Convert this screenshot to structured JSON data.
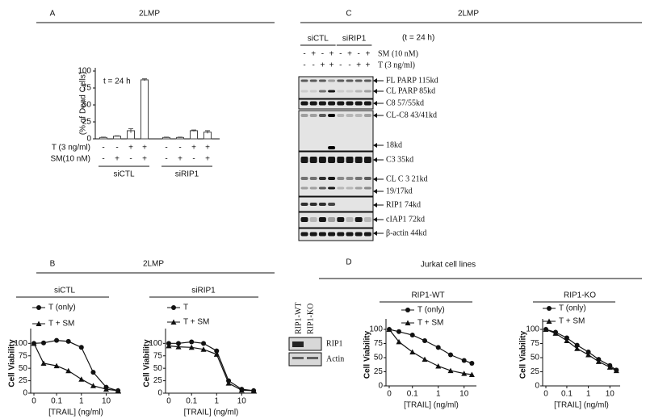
{
  "panels": [
    {
      "label": "A",
      "title": "2LMP"
    },
    {
      "label": "B",
      "title": "2LMP"
    },
    {
      "label": "C",
      "title": "2LMP"
    },
    {
      "label": "D",
      "title": "Jurkat cell lines"
    }
  ],
  "chart_data": [
    {
      "type": "bar",
      "annotation": "t = 24 h",
      "ylabel": "(% of Dead Cells)",
      "categories": [
        null,
        null,
        null,
        null,
        null,
        null,
        null,
        null
      ],
      "values": [
        2,
        4,
        12,
        87,
        2,
        2,
        12,
        10
      ],
      "errors": [
        0.5,
        0.5,
        3,
        1.5,
        0.5,
        0.5,
        1,
        2
      ],
      "color": "#ffffff",
      "edge_color": "#444444",
      "conditions": [
        {
          "label": "T (3 ng/ml)",
          "marks": [
            "-",
            "-",
            "+",
            "+",
            "-",
            "-",
            "+",
            "+"
          ]
        },
        {
          "label": "SM(10 nM)",
          "marks": [
            "-",
            "+",
            "-",
            "+",
            "-",
            "+",
            "-",
            "+"
          ]
        }
      ],
      "groups": [
        "siCTL",
        "siRIP1"
      ],
      "ylim": [
        0,
        100
      ],
      "yticks": [
        0,
        25,
        50,
        75,
        100
      ]
    },
    {
      "type": "line",
      "title": "siCTL",
      "xlabel": "[TRAIL] (ng/ml)",
      "ylabel": "Cell Viability",
      "xscale": "log",
      "x": [
        0,
        0.03,
        0.1,
        0.3,
        1,
        3,
        10,
        30
      ],
      "xlim": [
        0,
        40
      ],
      "xticks": [
        0,
        0.1,
        1,
        10
      ],
      "ylim": [
        0,
        120
      ],
      "yticks": [
        0,
        25,
        50,
        75,
        100
      ],
      "series": [
        {
          "name": "T (only)",
          "marker": "circle",
          "color": "#111111",
          "values": [
            100,
            101,
            106,
            104,
            92,
            42,
            12,
            5
          ]
        },
        {
          "name": "T + SM",
          "marker": "triangle",
          "color": "#111111",
          "values": [
            100,
            60,
            55,
            45,
            28,
            15,
            8,
            5
          ]
        }
      ]
    },
    {
      "type": "line",
      "title": "siRIP1",
      "xlabel": "[TRAIL] (ng/ml)",
      "ylabel": "Cell Viability",
      "xscale": "log",
      "x": [
        0,
        0.03,
        0.1,
        0.3,
        1,
        3,
        10,
        30
      ],
      "xlim": [
        0,
        40
      ],
      "xticks": [
        0,
        0.1,
        1,
        10
      ],
      "ylim": [
        0,
        120
      ],
      "yticks": [
        0,
        25,
        50,
        75,
        100
      ],
      "series": [
        {
          "name": "T",
          "marker": "circle",
          "color": "#111111",
          "values": [
            100,
            100,
            103,
            100,
            85,
            25,
            8,
            5
          ]
        },
        {
          "name": "T + SM",
          "marker": "triangle",
          "color": "#111111",
          "values": [
            95,
            93,
            92,
            88,
            78,
            20,
            6,
            5
          ]
        }
      ]
    },
    {
      "type": "line",
      "title": "RIP1-WT",
      "xlabel": "[TRAIL] (ng/ml)",
      "ylabel": "Cell Viability",
      "xscale": "log",
      "x": [
        0,
        0.03,
        0.1,
        0.3,
        1,
        3,
        10,
        20
      ],
      "xlim": [
        0,
        30
      ],
      "xticks": [
        0,
        0.1,
        1,
        10
      ],
      "ylim": [
        0,
        110
      ],
      "yticks": [
        0,
        25,
        50,
        75,
        100
      ],
      "series": [
        {
          "name": "T (only)",
          "marker": "circle",
          "color": "#111111",
          "values": [
            100,
            96,
            90,
            80,
            68,
            55,
            45,
            40
          ]
        },
        {
          "name": "T + SM",
          "marker": "triangle",
          "color": "#111111",
          "values": [
            100,
            78,
            60,
            47,
            35,
            27,
            22,
            20
          ]
        }
      ]
    },
    {
      "type": "line",
      "title": "RIP1-KO",
      "xlabel": "[TRAIL] (ng/ml)",
      "ylabel": "Cell Viability",
      "xscale": "log",
      "x": [
        0,
        0.03,
        0.1,
        0.3,
        1,
        3,
        10,
        20
      ],
      "xlim": [
        0,
        30
      ],
      "xticks": [
        0,
        0.1,
        1,
        10
      ],
      "ylim": [
        0,
        110
      ],
      "yticks": [
        0,
        25,
        50,
        75,
        100
      ],
      "series": [
        {
          "name": "T (only)",
          "marker": "circle",
          "color": "#111111",
          "values": [
            100,
            95,
            85,
            72,
            60,
            47,
            36,
            28
          ]
        },
        {
          "name": "T + SM",
          "marker": "triangle",
          "color": "#111111",
          "values": [
            100,
            93,
            80,
            66,
            55,
            43,
            33,
            27
          ]
        }
      ]
    }
  ],
  "blot_C": {
    "lane_groups": [
      "siCTL",
      "siRIP1"
    ],
    "annotation": "(t = 24 h)",
    "conditions": [
      {
        "label": "SM (10 nM)",
        "marks": [
          "-",
          "+",
          "-",
          "+",
          "-",
          "+",
          "-",
          "+"
        ]
      },
      {
        "label": "T (3 ng/ml)",
        "marks": [
          "-",
          "-",
          "+",
          "+",
          "-",
          "-",
          "+",
          "+"
        ]
      }
    ],
    "bands": [
      "FL PARP 115kd",
      "CL PARP 85kd",
      "C8 57/55kd",
      "CL-C8 43/41kd",
      "18kd",
      "C3 35kd",
      "CL C 3  21kd",
      "19/17kd",
      "RIP1 74kd",
      "cIAP1 72kd",
      "β-actin 44kd"
    ]
  },
  "blot_D": {
    "samples": [
      "RIP1-WT",
      "RIP1-KO"
    ],
    "bands": [
      "RIP1",
      "Actin"
    ]
  }
}
